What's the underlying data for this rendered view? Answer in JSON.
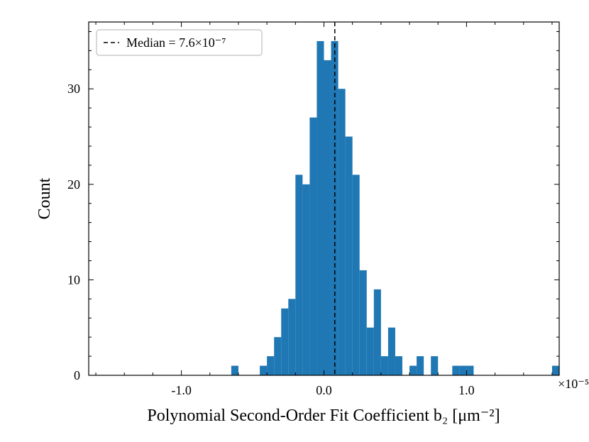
{
  "chart_data": {
    "type": "bar",
    "title": "",
    "xlabel": "Polynomial Second-Order Fit Coefficient b₂ [μm⁻²]",
    "ylabel": "Count",
    "x_multiplier": "×10⁻⁵",
    "xlim": [
      -1.65e-05,
      1.65e-05
    ],
    "ylim": [
      0,
      37
    ],
    "x_ticks": [
      -1e-05,
      0.0,
      1e-05
    ],
    "x_tick_labels": [
      "-1.0",
      "0.0",
      "1.0"
    ],
    "y_ticks": [
      0,
      10,
      20,
      30
    ],
    "y_tick_labels": [
      "0",
      "10",
      "20",
      "30"
    ],
    "grid": false,
    "legend_position": "top-left",
    "bin_width": 5e-07,
    "bar_color": "#1f77b4",
    "bins": [
      {
        "x0": -6.5e-06,
        "count": 1
      },
      {
        "x0": -4.5e-06,
        "count": 1
      },
      {
        "x0": -4e-06,
        "count": 2
      },
      {
        "x0": -3.5e-06,
        "count": 4
      },
      {
        "x0": -3e-06,
        "count": 7
      },
      {
        "x0": -2.5e-06,
        "count": 8
      },
      {
        "x0": -2e-06,
        "count": 21
      },
      {
        "x0": -1.5e-06,
        "count": 20
      },
      {
        "x0": -1e-06,
        "count": 27
      },
      {
        "x0": -5e-07,
        "count": 35
      },
      {
        "x0": 0.0,
        "count": 33
      },
      {
        "x0": 5e-07,
        "count": 35
      },
      {
        "x0": 1e-06,
        "count": 30
      },
      {
        "x0": 1.5e-06,
        "count": 25
      },
      {
        "x0": 2e-06,
        "count": 21
      },
      {
        "x0": 2.5e-06,
        "count": 11
      },
      {
        "x0": 3e-06,
        "count": 5
      },
      {
        "x0": 3.5e-06,
        "count": 9
      },
      {
        "x0": 4e-06,
        "count": 2
      },
      {
        "x0": 4.5e-06,
        "count": 5
      },
      {
        "x0": 5e-06,
        "count": 2
      },
      {
        "x0": 6e-06,
        "count": 1
      },
      {
        "x0": 6.5e-06,
        "count": 2
      },
      {
        "x0": 7.5e-06,
        "count": 2
      },
      {
        "x0": 9e-06,
        "count": 1
      },
      {
        "x0": 9.5e-06,
        "count": 1
      },
      {
        "x0": 1e-05,
        "count": 1
      },
      {
        "x0": 1.6e-05,
        "count": 1
      }
    ],
    "median": {
      "value": 7.6e-07,
      "label": "Median = 7.6×10⁻⁷",
      "line_color": "#000000",
      "line_style": "dashed"
    }
  }
}
